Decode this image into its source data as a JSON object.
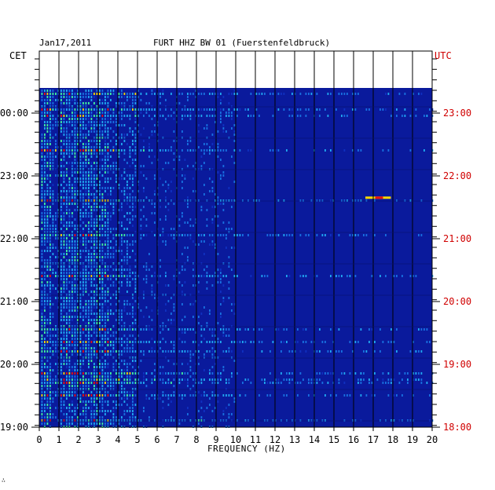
{
  "header": {
    "date": "Jan17,2011",
    "station": "FURT HHZ BW 01 (Fuerstenfeldbruck)",
    "left_zone": "CET",
    "right_zone": "UTC"
  },
  "chart_data": {
    "type": "heatmap",
    "title": "FURT HHZ BW 01 (Fuerstenfeldbruck)",
    "xlabel": "FREQUENCY (HZ)",
    "xlim": [
      0,
      20
    ],
    "x_ticks": [
      "0",
      "1",
      "2",
      "3",
      "4",
      "5",
      "6",
      "7",
      "8",
      "9",
      "10",
      "11",
      "12",
      "13",
      "14",
      "15",
      "16",
      "17",
      "18",
      "19",
      "20"
    ],
    "y_ticks_cet": [
      "00:00",
      "23:00",
      "22:00",
      "21:00",
      "20:00",
      "19:00"
    ],
    "y_ticks_utc": [
      "23:00",
      "22:00",
      "21:00",
      "20:00",
      "19:00",
      "18:00"
    ],
    "colors": {
      "background": "#0a1a9c",
      "low": "#1030c0",
      "mid": "#20a8f0",
      "high": "#f8d800",
      "peak": "#e81010",
      "utc_text": "#d00000"
    },
    "grid": true
  },
  "footer": {
    "mark": "∴"
  }
}
